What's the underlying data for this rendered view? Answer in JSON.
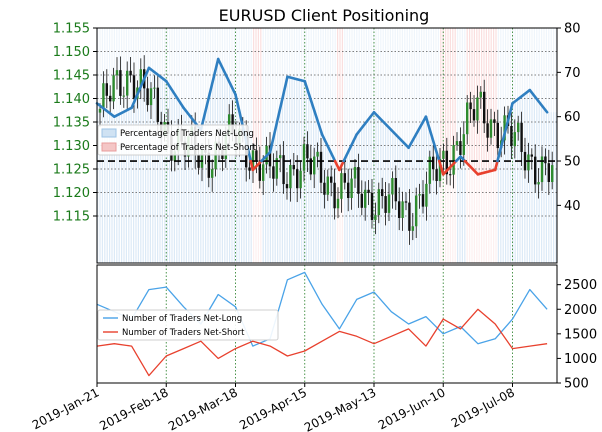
{
  "chart_data": [
    {
      "type": "candlestick+line",
      "title": "EURUSD Client Positioning",
      "left_axis": {
        "ylim": [
          1.105,
          1.155
        ],
        "ticks": [
          "1.115",
          "1.120",
          "1.125",
          "1.130",
          "1.135",
          "1.140",
          "1.145",
          "1.150",
          "1.155"
        ]
      },
      "right_axis": {
        "ylim": [
          27,
          80
        ],
        "ticks": [
          "40",
          "50",
          "60",
          "70",
          "80"
        ]
      },
      "legend": {
        "placement": "center-left",
        "entries": [
          "Percentage of Traders Net-Long",
          "Percentage of Traders Net-Short"
        ]
      },
      "reference_line": 50,
      "price_range": {
        "x": [
          "2019-01-21",
          "2019-02-04",
          "2019-02-18",
          "2019-03-04",
          "2019-03-18",
          "2019-04-01",
          "2019-04-15",
          "2019-04-29",
          "2019-05-13",
          "2019-05-27",
          "2019-06-10",
          "2019-06-24",
          "2019-07-08",
          "2019-07-22"
        ],
        "close": [
          1.137,
          1.146,
          1.133,
          1.127,
          1.132,
          1.124,
          1.126,
          1.121,
          1.119,
          1.116,
          1.126,
          1.138,
          1.131,
          1.124
        ]
      },
      "series": [
        {
          "name": "Percentage of Traders Net-Long",
          "x": [
            "2019-01-21",
            "2019-01-28",
            "2019-02-04",
            "2019-02-11",
            "2019-02-18",
            "2019-02-25",
            "2019-03-04",
            "2019-03-11",
            "2019-03-18",
            "2019-03-25",
            "2019-04-01",
            "2019-04-08",
            "2019-04-15",
            "2019-04-22",
            "2019-04-29",
            "2019-05-06",
            "2019-05-13",
            "2019-05-20",
            "2019-05-27",
            "2019-06-03",
            "2019-06-10",
            "2019-06-17",
            "2019-06-24",
            "2019-07-01",
            "2019-07-08",
            "2019-07-15",
            "2019-07-22"
          ],
          "values": [
            63,
            60,
            62,
            71,
            68,
            62,
            57,
            73,
            65,
            48,
            52,
            69,
            68,
            56,
            48,
            56,
            61,
            57,
            53,
            60,
            47,
            51,
            47,
            48,
            63,
            66,
            61
          ]
        }
      ]
    },
    {
      "type": "line",
      "y_axis": {
        "ylim": [
          500,
          2900
        ],
        "ticks": [
          "500",
          "1000",
          "1500",
          "2000",
          "2500"
        ]
      },
      "legend": {
        "placement": "center-left",
        "entries": [
          "Number of Traders Net-Long",
          "Number of Traders Net-Short"
        ]
      },
      "x_ticks": [
        "2019-Jan-21",
        "2019-Feb-18",
        "2019-Mar-18",
        "2019-Apr-15",
        "2019-May-13",
        "2019-Jun-10",
        "2019-Jul-08"
      ],
      "series": [
        {
          "name": "Number of Traders Net-Long",
          "x": [
            "2019-01-21",
            "2019-01-28",
            "2019-02-04",
            "2019-02-11",
            "2019-02-18",
            "2019-02-25",
            "2019-03-04",
            "2019-03-11",
            "2019-03-18",
            "2019-03-25",
            "2019-04-01",
            "2019-04-08",
            "2019-04-15",
            "2019-04-22",
            "2019-04-29",
            "2019-05-06",
            "2019-05-13",
            "2019-05-20",
            "2019-05-27",
            "2019-06-03",
            "2019-06-10",
            "2019-06-17",
            "2019-06-24",
            "2019-07-01",
            "2019-07-08",
            "2019-07-15",
            "2019-07-22"
          ],
          "values": [
            2100,
            1950,
            1800,
            2400,
            2450,
            2050,
            1700,
            2300,
            2050,
            1250,
            1400,
            2600,
            2750,
            2100,
            1600,
            2200,
            2350,
            1950,
            1700,
            1850,
            1500,
            1650,
            1300,
            1400,
            1800,
            2400,
            2000
          ]
        },
        {
          "name": "Number of Traders Net-Short",
          "x": [
            "2019-01-21",
            "2019-01-28",
            "2019-02-04",
            "2019-02-11",
            "2019-02-18",
            "2019-02-25",
            "2019-03-04",
            "2019-03-11",
            "2019-03-18",
            "2019-03-25",
            "2019-04-01",
            "2019-04-08",
            "2019-04-15",
            "2019-04-22",
            "2019-04-29",
            "2019-05-06",
            "2019-05-13",
            "2019-05-20",
            "2019-05-27",
            "2019-06-03",
            "2019-06-10",
            "2019-06-17",
            "2019-06-24",
            "2019-07-01",
            "2019-07-08",
            "2019-07-15",
            "2019-07-22"
          ],
          "values": [
            1250,
            1300,
            1250,
            650,
            1050,
            1200,
            1350,
            1000,
            1200,
            1350,
            1250,
            1050,
            1150,
            1350,
            1550,
            1450,
            1300,
            1450,
            1600,
            1250,
            1800,
            1600,
            2000,
            1700,
            1200,
            1250,
            1300
          ]
        }
      ]
    }
  ]
}
